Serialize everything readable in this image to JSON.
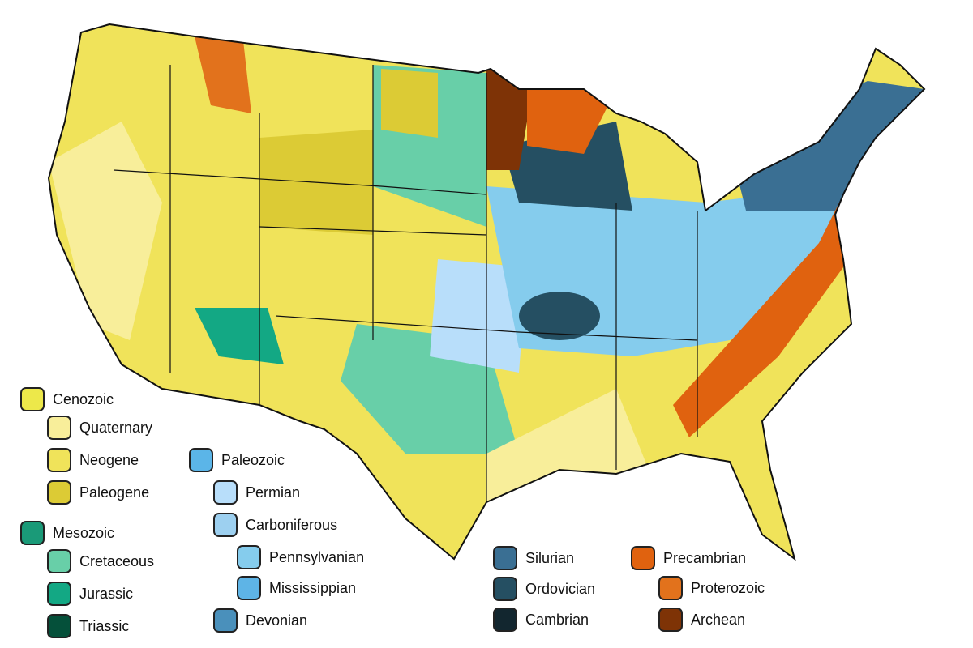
{
  "legend": [
    {
      "label": "Cenozoic",
      "color": "#ede84a"
    },
    {
      "label": "Quaternary",
      "color": "#f8ee9a"
    },
    {
      "label": "Neogene",
      "color": "#f0e35a"
    },
    {
      "label": "Paleogene",
      "color": "#dccb35"
    },
    {
      "label": "Mesozoic",
      "color": "#1a9a78"
    },
    {
      "label": "Cretaceous",
      "color": "#68cfa8"
    },
    {
      "label": "Jurassic",
      "color": "#13a884"
    },
    {
      "label": "Triassic",
      "color": "#05503a"
    },
    {
      "label": "Paleozoic",
      "color": "#5bb5e8"
    },
    {
      "label": "Permian",
      "color": "#b8defa"
    },
    {
      "label": "Carboniferous",
      "color": "#9dd0f0"
    },
    {
      "label": "Pennsylvanian",
      "color": "#85cced"
    },
    {
      "label": "Mississippian",
      "color": "#5eb4e6"
    },
    {
      "label": "Devonian",
      "color": "#4a90bb"
    },
    {
      "label": "Silurian",
      "color": "#3a6f93"
    },
    {
      "label": "Ordovician",
      "color": "#254f62"
    },
    {
      "label": "Cambrian",
      "color": "#12262f"
    },
    {
      "label": "Precambrian",
      "color": "#e0620f"
    },
    {
      "label": "Proterozoic",
      "color": "#e2721c"
    },
    {
      "label": "Archean",
      "color": "#7e3306"
    }
  ]
}
